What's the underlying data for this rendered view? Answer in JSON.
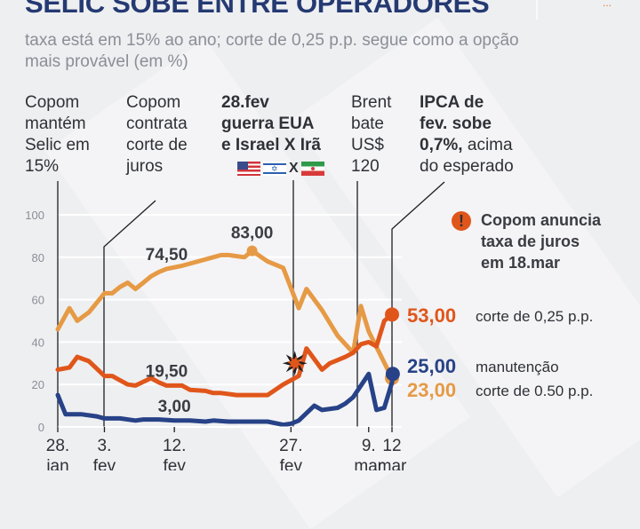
{
  "header": {
    "title": "SELIC SOBE ENTRE OPERADORES",
    "subtitle": "taxa está em 15% ao ano; corte de 0,25 p.p. segue como a opção mais provável (em %)",
    "logo_glyph": "..."
  },
  "annotations": [
    {
      "lines": [
        "Copom",
        "mantém",
        "Selic em",
        "15%"
      ],
      "bold_lines": []
    },
    {
      "lines": [
        "Copom",
        "contrata",
        "corte de",
        "juros"
      ],
      "bold_lines": []
    },
    {
      "lines": [
        "28.fev",
        "guerra EUA",
        "e Israel X Irã"
      ],
      "bold_lines": [
        0,
        1,
        2
      ]
    },
    {
      "lines": [
        "Brent",
        "bate",
        "US$",
        "120"
      ],
      "bold_lines": []
    },
    {
      "lines": [
        "IPCA de",
        "fev. sobe",
        "0,7%,",
        "acima",
        "do esperado"
      ]
    }
  ],
  "flags": {
    "first": "us-flag",
    "second": "israel-flag",
    "separator": "X",
    "third": "iran-flag"
  },
  "alert": {
    "icon": "!",
    "text_lines": [
      "Copom anuncia",
      "taxa de juros",
      "em 18.mar"
    ]
  },
  "colors": {
    "corte_025": "#e0561a",
    "manutencao": "#274287",
    "corte_050": "#e69a45",
    "title": "#253a72",
    "alert": "#e0561a"
  },
  "chart_data": {
    "type": "line",
    "title": "SELIC SOBE ENTRE OPERADORES",
    "subtitle": "taxa está em 15% ao ano; corte de 0,25 p.p. segue como a opção mais provável (em %)",
    "xlabel": "",
    "ylabel": "%",
    "ylim": [
      0,
      100
    ],
    "yticks": [
      0,
      20,
      40,
      60,
      80,
      100
    ],
    "grid": true,
    "x_range_days": [
      0,
      43
    ],
    "xticks": [
      {
        "day": 0,
        "line1": "28.",
        "line2": "jan"
      },
      {
        "day": 6,
        "line1": "3.",
        "line2": "fev"
      },
      {
        "day": 15,
        "line1": "12.",
        "line2": "fev"
      },
      {
        "day": 30,
        "line1": "27.",
        "line2": "fev"
      },
      {
        "day": 40,
        "line1": "9.",
        "line2": "mar"
      },
      {
        "day": 43,
        "line1": "12",
        "line2": "mar"
      }
    ],
    "event_days": [
      0,
      6,
      31,
      40,
      43
    ],
    "event_marker": {
      "day": 30.5,
      "value": 30,
      "icon": "explosion-icon"
    },
    "series": [
      {
        "name": "corte de 0,25 p.p.",
        "key": "corte_025",
        "end_label": "53,00",
        "points": [
          [
            0,
            27
          ],
          [
            1.5,
            28
          ],
          [
            2.5,
            33
          ],
          [
            4,
            31
          ],
          [
            6,
            24
          ],
          [
            7,
            24
          ],
          [
            8,
            22
          ],
          [
            9,
            20
          ],
          [
            10,
            19.5
          ],
          [
            12,
            23
          ],
          [
            13,
            21
          ],
          [
            14,
            19.5
          ],
          [
            16,
            19.5
          ],
          [
            17,
            17.5
          ],
          [
            19,
            17
          ],
          [
            20,
            16
          ],
          [
            21,
            16
          ],
          [
            23,
            15
          ],
          [
            24,
            15
          ],
          [
            25,
            15
          ],
          [
            27,
            15
          ],
          [
            29,
            20
          ],
          [
            30,
            22
          ],
          [
            31,
            24
          ],
          [
            32,
            37
          ],
          [
            34,
            27
          ],
          [
            35,
            30
          ],
          [
            37,
            33
          ],
          [
            38,
            35
          ],
          [
            39,
            39
          ],
          [
            40,
            40
          ],
          [
            41,
            38
          ],
          [
            42,
            50
          ],
          [
            43,
            53
          ]
        ],
        "labels": [
          {
            "day": 14,
            "value": 19.5,
            "text": "19,50"
          }
        ]
      },
      {
        "name": "manutenção",
        "key": "manutencao",
        "end_label": "25,00",
        "points": [
          [
            0,
            15
          ],
          [
            1,
            6
          ],
          [
            2,
            6
          ],
          [
            3,
            6
          ],
          [
            5,
            5
          ],
          [
            6,
            4
          ],
          [
            8,
            4
          ],
          [
            10,
            3
          ],
          [
            11,
            3.5
          ],
          [
            13,
            3.5
          ],
          [
            15,
            3
          ],
          [
            17,
            3
          ],
          [
            19,
            2.5
          ],
          [
            20,
            3
          ],
          [
            22,
            2.5
          ],
          [
            25,
            2.5
          ],
          [
            27,
            2.5
          ],
          [
            29,
            1
          ],
          [
            30,
            1.5
          ],
          [
            31,
            3
          ],
          [
            33,
            10
          ],
          [
            34,
            8
          ],
          [
            36,
            9
          ],
          [
            37,
            11
          ],
          [
            38,
            14
          ],
          [
            40,
            25
          ],
          [
            41,
            8
          ],
          [
            42,
            9
          ],
          [
            43,
            21
          ],
          [
            43.1,
            25
          ]
        ],
        "labels": [
          {
            "day": 15,
            "value": 3,
            "text": "3,00"
          }
        ]
      },
      {
        "name": "corte de 0.50 p.p.",
        "key": "corte_050",
        "end_label": "23,00",
        "points": [
          [
            0,
            46
          ],
          [
            1.5,
            56
          ],
          [
            2.5,
            50
          ],
          [
            4,
            54
          ],
          [
            6,
            63
          ],
          [
            7,
            63
          ],
          [
            8,
            66
          ],
          [
            9,
            68
          ],
          [
            10,
            65
          ],
          [
            11,
            68
          ],
          [
            12,
            71
          ],
          [
            13,
            73
          ],
          [
            14,
            74.5
          ],
          [
            16,
            76
          ],
          [
            17,
            77
          ],
          [
            18,
            78
          ],
          [
            20,
            80
          ],
          [
            21,
            81
          ],
          [
            22,
            81
          ],
          [
            24,
            80
          ],
          [
            25,
            83
          ],
          [
            27,
            78
          ],
          [
            29,
            75
          ],
          [
            31,
            56
          ],
          [
            32,
            65
          ],
          [
            34,
            55
          ],
          [
            36,
            43
          ],
          [
            38,
            35
          ],
          [
            39,
            57
          ],
          [
            40,
            45
          ],
          [
            43,
            23
          ]
        ],
        "labels": [
          {
            "day": 14,
            "value": 74.5,
            "text": "74,50"
          },
          {
            "day": 25,
            "value": 83,
            "text": "83,00"
          }
        ]
      }
    ]
  }
}
